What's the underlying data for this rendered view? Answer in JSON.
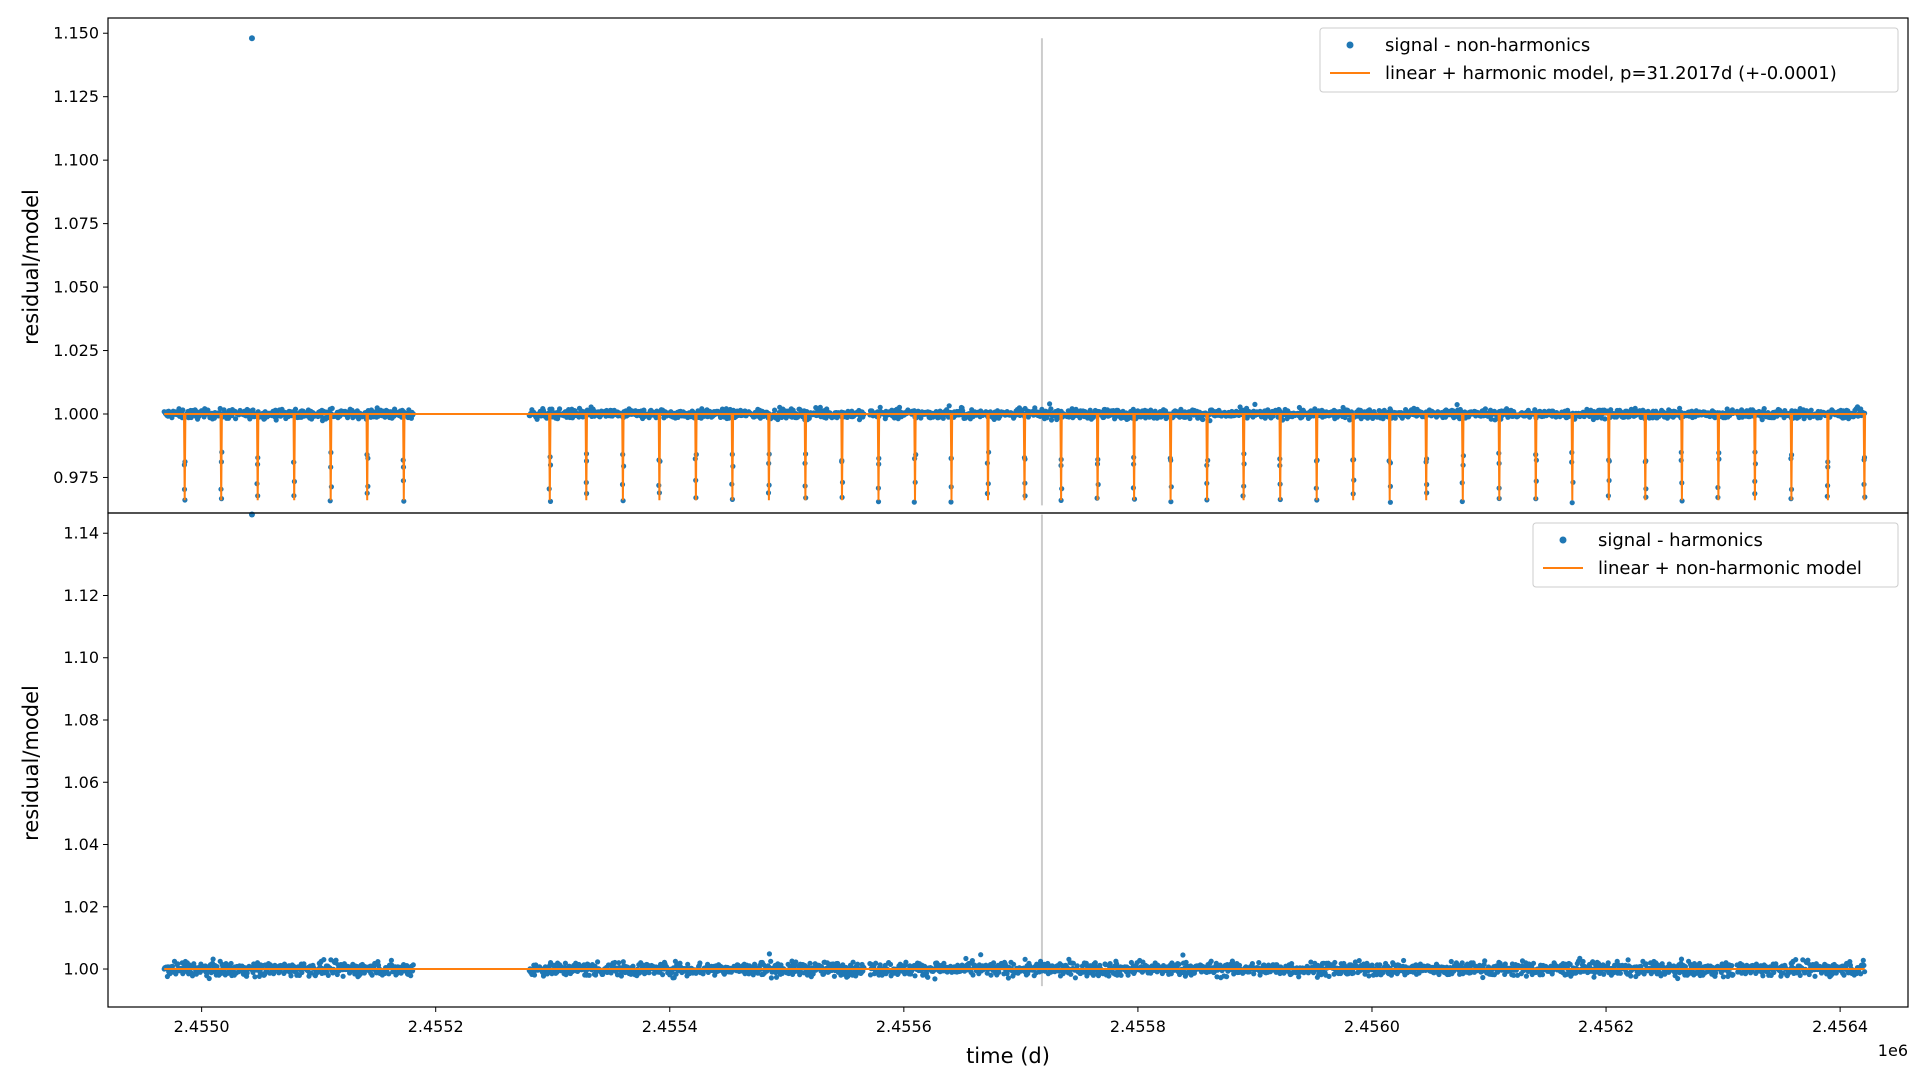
{
  "chart_data": [
    {
      "type": "scatter",
      "panel": "top",
      "ylabel": "residual/model",
      "xlabel": "",
      "ylim": [
        0.961,
        1.156
      ],
      "xlim": [
        2454920,
        2456458
      ],
      "yticks": [
        0.975,
        1.0,
        1.025,
        1.05,
        1.075,
        1.1,
        1.125,
        1.15
      ],
      "ytick_labels": [
        "0.975",
        "1.000",
        "1.025",
        "1.050",
        "1.075",
        "1.100",
        "1.125",
        "1.150"
      ],
      "legend_position": "upper right",
      "series": [
        {
          "name": "signal - non-harmonics",
          "kind": "scatter",
          "color": "#1f77b4",
          "baseline": 1.0,
          "outlier": {
            "x": 2455043,
            "y": 1.148
          }
        },
        {
          "name": "linear + harmonic model, p=31.2017d (+-0.0001)",
          "kind": "line",
          "color": "#ff7f0e",
          "baseline": 1.0,
          "period_days": 31.2017,
          "dip_depth": 0.966
        }
      ],
      "vertical_marker": {
        "x": 2455718,
        "color": "#cccccc"
      },
      "data_segments": [
        [
          2454968,
          2455181
        ],
        [
          2455280,
          2455566
        ],
        [
          2455571,
          2455635
        ],
        [
          2455636,
          2456125
        ],
        [
          2456127,
          2456309
        ],
        [
          2456312,
          2456421
        ]
      ],
      "grid": false
    },
    {
      "type": "scatter",
      "panel": "bottom",
      "ylabel": "residual/model",
      "xlabel": "time (d)",
      "x_offset_label": "1e6",
      "ylim": [
        0.9878,
        1.1465
      ],
      "xlim": [
        2454920,
        2456458
      ],
      "yticks": [
        1.0,
        1.02,
        1.04,
        1.06,
        1.08,
        1.1,
        1.12,
        1.14
      ],
      "ytick_labels": [
        "1.00",
        "1.02",
        "1.04",
        "1.06",
        "1.08",
        "1.10",
        "1.12",
        "1.14"
      ],
      "xticks": [
        2455000,
        2455200,
        2455400,
        2455600,
        2455800,
        2456000,
        2456200,
        2456400
      ],
      "xtick_labels": [
        "2.4550",
        "2.4552",
        "2.4554",
        "2.4556",
        "2.4558",
        "2.4560",
        "2.4562",
        "2.4564"
      ],
      "legend_position": "upper right",
      "series": [
        {
          "name": "signal - harmonics",
          "kind": "scatter",
          "color": "#1f77b4",
          "baseline": 1.0,
          "outlier": {
            "x": 2455043,
            "y": 1.146
          }
        },
        {
          "name": "linear + non-harmonic model",
          "kind": "line",
          "color": "#ff7f0e",
          "baseline": 1.0
        }
      ],
      "vertical_marker": {
        "x": 2455718,
        "color": "#cccccc"
      },
      "data_segments": [
        [
          2454968,
          2455181
        ],
        [
          2455280,
          2455566
        ],
        [
          2455571,
          2455635
        ],
        [
          2455636,
          2456125
        ],
        [
          2456127,
          2456309
        ],
        [
          2456312,
          2456421
        ]
      ],
      "grid": false
    }
  ]
}
